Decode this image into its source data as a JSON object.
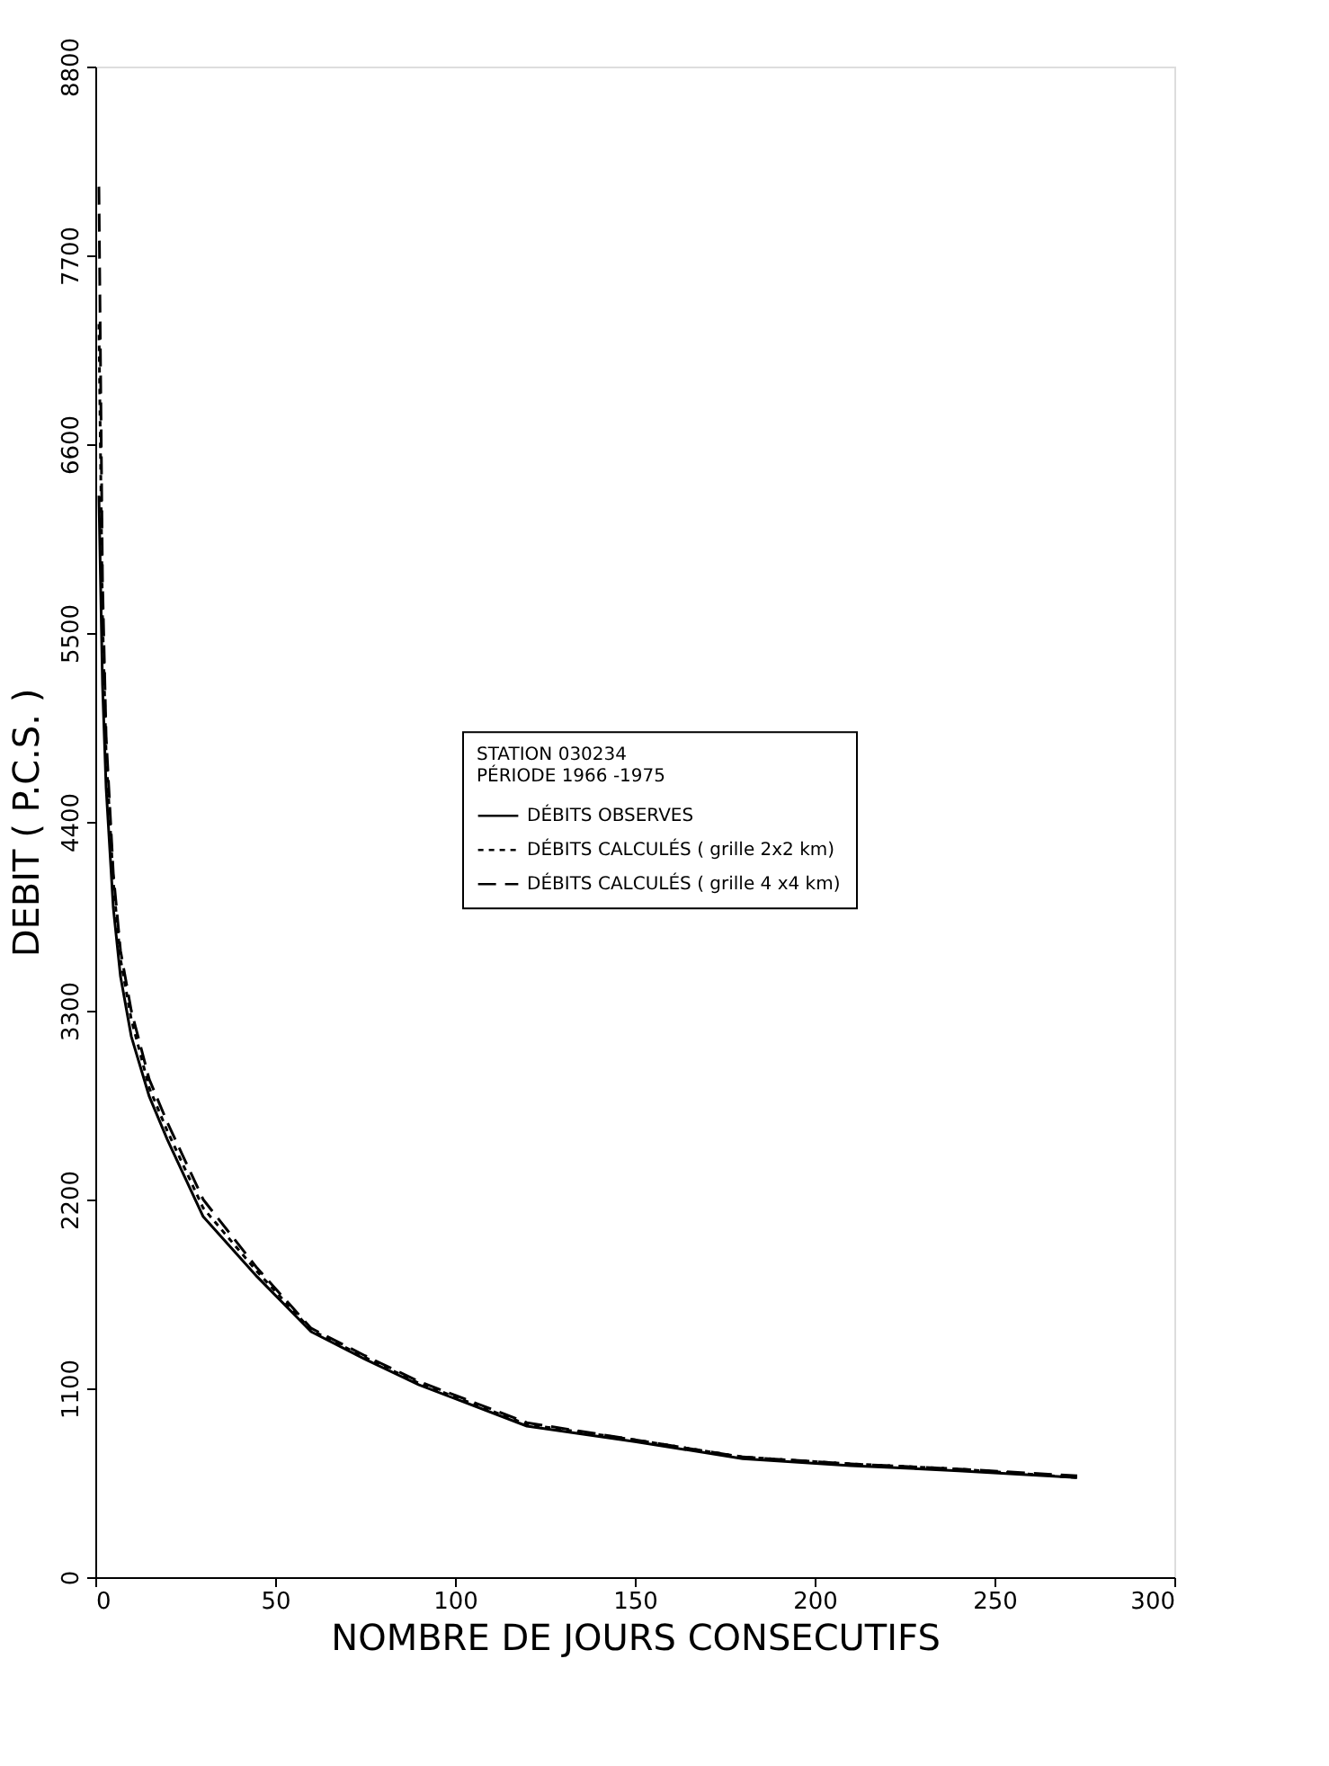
{
  "chart_data": {
    "type": "line",
    "xlabel": "NOMBRE DE JOURS CONSECUTIFS",
    "ylabel": "DEBIT ( P.C.S. )",
    "legend_title": "STATION     030234\nPÉRIODE     1966 -1975",
    "x": [
      1,
      2,
      3,
      5,
      7,
      10,
      15,
      20,
      30,
      45,
      60,
      75,
      90,
      120,
      150,
      180,
      210,
      240,
      273
    ],
    "series": [
      {
        "name": "DÉBITS OBSERVES",
        "color": "#000000",
        "line_style": "solid",
        "values": [
          6300,
          5200,
          4600,
          3900,
          3500,
          3150,
          2800,
          2550,
          2100,
          1750,
          1430,
          1270,
          1120,
          880,
          790,
          690,
          650,
          620,
          580
        ]
      },
      {
        "name": "DÉBITS CALCULÉS ( grille 2x2 km)",
        "color": "#000000",
        "line_style": "dotted",
        "values": [
          7300,
          5600,
          4800,
          4050,
          3600,
          3250,
          2850,
          2600,
          2150,
          1780,
          1440,
          1280,
          1130,
          890,
          800,
          700,
          660,
          630,
          580
        ]
      },
      {
        "name": "DÉBITS CALCULÉS ( grille 4 x4 km)",
        "color": "#000000",
        "line_style": "dashed",
        "values": [
          8100,
          5800,
          4900,
          4100,
          3650,
          3300,
          2900,
          2650,
          2200,
          1800,
          1450,
          1290,
          1140,
          900,
          800,
          700,
          660,
          630,
          590
        ]
      }
    ],
    "xlim": [
      0,
      300
    ],
    "xticks": [
      0,
      50,
      100,
      150,
      200,
      250,
      300
    ],
    "ylim": [
      0,
      8800
    ],
    "yticks": [
      0,
      1100,
      2200,
      3300,
      4400,
      5500,
      6600,
      7700,
      8800
    ],
    "grid": false,
    "legend": "right",
    "marker": "none"
  }
}
